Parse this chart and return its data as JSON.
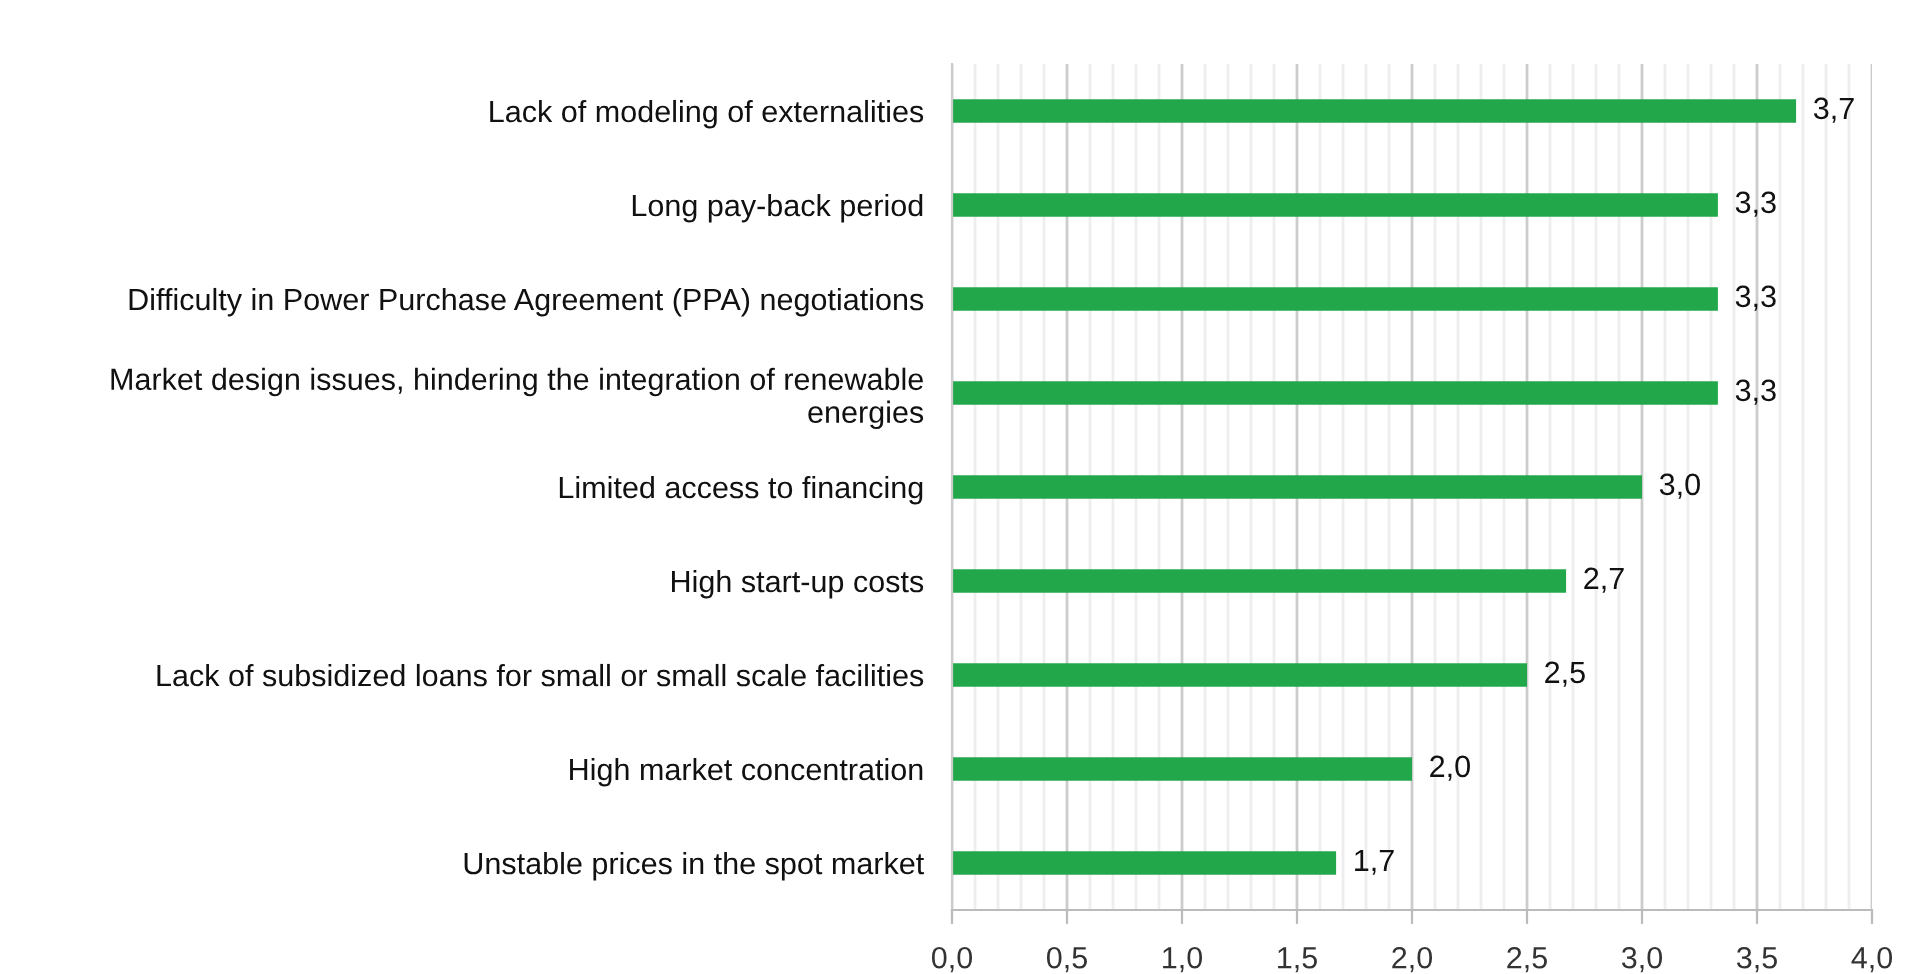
{
  "chart_data": {
    "type": "bar",
    "orientation": "horizontal",
    "categories": [
      "Lack of modeling of externalities",
      "Long pay-back period",
      "Difficulty in Power Purchase Agreement (PPA) negotiations",
      "Market design issues, hindering the integration of renewable\nenergies",
      "Limited access to financing",
      "High start-up costs",
      "Lack of subsidized loans for small or small scale facilities",
      "High market concentration",
      "Unstable prices in the spot market"
    ],
    "values": [
      3.67,
      3.33,
      3.33,
      3.33,
      3.0,
      2.67,
      2.5,
      2.0,
      1.67
    ],
    "value_labels": [
      "3,7",
      "3,3",
      "3,3",
      "3,3",
      "3,0",
      "2,7",
      "2,5",
      "2,0",
      "1,7"
    ],
    "color": "#22a84a",
    "xlim": [
      0,
      4.0
    ],
    "xticks": [
      {
        "value": 0,
        "label": "0,0"
      },
      {
        "value": 0.5,
        "label": "0,5"
      },
      {
        "value": 1.0,
        "label": "1,0"
      },
      {
        "value": 1.5,
        "label": "1,5"
      },
      {
        "value": 2.0,
        "label": "2,0"
      },
      {
        "value": 2.5,
        "label": "2,5"
      },
      {
        "value": 3.0,
        "label": "3,0"
      },
      {
        "value": 3.5,
        "label": "3,5"
      },
      {
        "value": 4.0,
        "label": "4,0"
      }
    ],
    "grid": "x"
  }
}
